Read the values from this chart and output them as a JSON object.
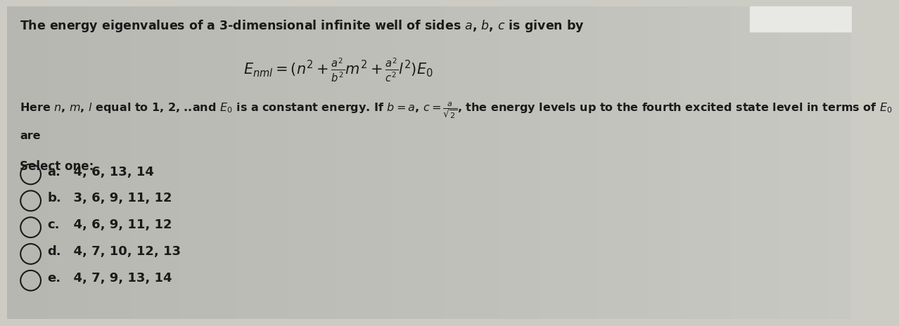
{
  "bg_color_left": "#c8c8c0",
  "bg_color_right": "#d8ddd5",
  "text_color": "#1a1a1a",
  "title_line": "The energy eigenvalues of a 3-dimensional infinite well of sides $a$, $b$, $c$ is given by",
  "formula": "$E_{nml} = (n^2 + \\frac{a^2}{b^2}m^2 + \\frac{a^2}{c^2}l^2)E_0$",
  "body_line1": "Here $n$, $m$, $l$ equal to 1, 2, ..and $E_0$ is a constant energy. If $b = a$, $c = \\frac{a}{\\sqrt{2}}$, the energy levels up to the fourth excited state level in terms of $E_0$",
  "body_line2": "are",
  "select_label": "Select one:",
  "options": [
    {
      "label": "a.",
      "text": "  4, 6, 13, 14"
    },
    {
      "label": "b.",
      "text": "  3, 6, 9, 11, 12"
    },
    {
      "label": "c.",
      "text": "  4, 6, 9, 11, 12"
    },
    {
      "label": "d.",
      "text": "  4, 7, 10, 12, 13"
    },
    {
      "label": "e.",
      "text": "  4, 7, 9, 13, 14"
    }
  ],
  "font_size_title": 12.5,
  "font_size_formula": 15,
  "font_size_body": 11.5,
  "font_size_options": 13,
  "font_size_select": 12
}
